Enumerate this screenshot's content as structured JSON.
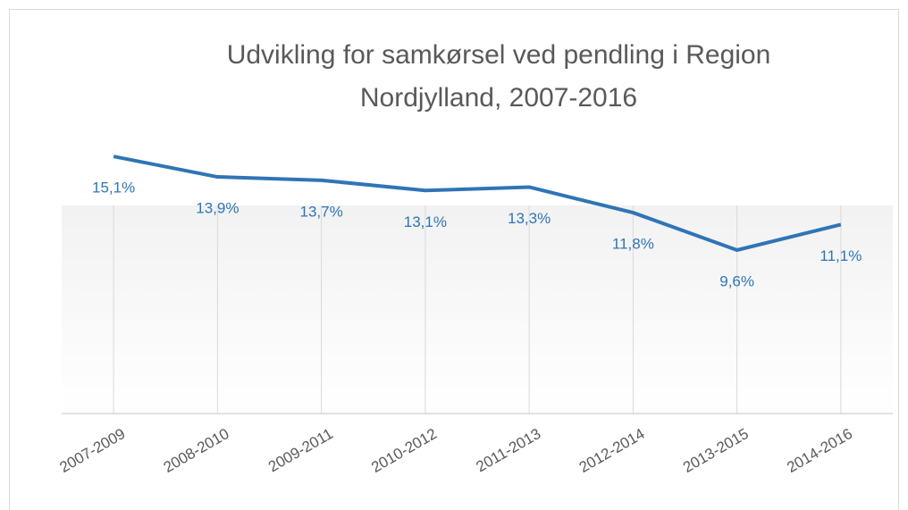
{
  "chart_data": {
    "type": "line",
    "title": "Udvikling for samkørsel ved pendling i Region Nordjylland, 2007-2016",
    "categories": [
      "2007-2009",
      "2008-2010",
      "2009-2011",
      "2010-2012",
      "2011-2013",
      "2012-2014",
      "2013-2015",
      "2014-2016"
    ],
    "series": [
      {
        "color": "#2e75b6",
        "values": [
          15.1,
          13.9,
          13.7,
          13.1,
          13.3,
          11.8,
          9.6,
          11.1
        ],
        "value_labels": [
          "15,1%",
          "13,9%",
          "13,7%",
          "13,1%",
          "13,3%",
          "11,8%",
          "9,6%",
          "11,1%"
        ]
      }
    ],
    "ylim": [
      0,
      16
    ],
    "grid": true
  }
}
